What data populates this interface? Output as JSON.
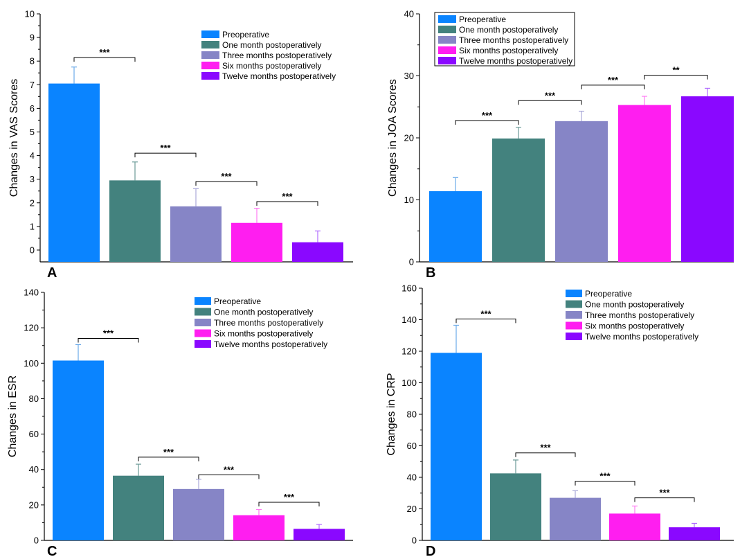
{
  "chart_data": [
    {
      "panel": "A",
      "type": "bar",
      "categories": [
        "Preoperative",
        "One month postoperatively",
        "Three months postoperatively",
        "Six months postoperatively",
        "Twelve months postoperatively"
      ],
      "values": [
        7.05,
        2.95,
        1.85,
        1.15,
        0.33
      ],
      "errors": [
        0.7,
        0.78,
        0.75,
        0.62,
        0.48
      ],
      "ylabel": "Changes in VAS Scores",
      "xlabel": "",
      "ylim": [
        -0.5,
        10
      ],
      "yticks": [
        0,
        1,
        2,
        3,
        4,
        5,
        6,
        7,
        8,
        9,
        10
      ],
      "legend_position": "top-right",
      "significance": [
        {
          "from": 0,
          "to": 1,
          "label": "***",
          "y": 8.15
        },
        {
          "from": 1,
          "to": 2,
          "label": "***",
          "y": 4.1
        },
        {
          "from": 2,
          "to": 3,
          "label": "***",
          "y": 2.9
        },
        {
          "from": 3,
          "to": 4,
          "label": "***",
          "y": 2.05
        }
      ]
    },
    {
      "panel": "B",
      "type": "bar",
      "categories": [
        "Preoperative",
        "One month postoperatively",
        "Three months postoperatively",
        "Six months postoperatively",
        "Twelve months postoperatively"
      ],
      "values": [
        11.4,
        19.9,
        22.7,
        25.3,
        26.7
      ],
      "errors": [
        2.2,
        1.8,
        1.6,
        1.4,
        1.3
      ],
      "ylabel": "Changes in JOA Scores",
      "xlabel": "",
      "ylim": [
        0,
        40
      ],
      "yticks": [
        0,
        10,
        20,
        30,
        40
      ],
      "legend_position": "top-left",
      "significance": [
        {
          "from": 0,
          "to": 1,
          "label": "***",
          "y": 22.8
        },
        {
          "from": 1,
          "to": 2,
          "label": "***",
          "y": 26.0
        },
        {
          "from": 2,
          "to": 3,
          "label": "***",
          "y": 28.5
        },
        {
          "from": 3,
          "to": 4,
          "label": "**",
          "y": 30.1
        }
      ]
    },
    {
      "panel": "C",
      "type": "bar",
      "categories": [
        "Preoperative",
        "One month postoperatively",
        "Three months postoperatively",
        "Six months postoperatively",
        "Twelve months postoperatively"
      ],
      "values": [
        101.5,
        36.5,
        29.0,
        14.2,
        6.5
      ],
      "errors": [
        9.0,
        6.5,
        5.5,
        3.2,
        2.5
      ],
      "ylabel": "Changes in ESR",
      "xlabel": "",
      "ylim": [
        0,
        140
      ],
      "yticks": [
        0,
        20,
        40,
        60,
        80,
        100,
        120,
        140
      ],
      "legend_position": "top-right",
      "significance": [
        {
          "from": 0,
          "to": 1,
          "label": "***",
          "y": 114.0
        },
        {
          "from": 1,
          "to": 2,
          "label": "***",
          "y": 47.0
        },
        {
          "from": 2,
          "to": 3,
          "label": "***",
          "y": 37.0
        },
        {
          "from": 3,
          "to": 4,
          "label": "***",
          "y": 21.5
        }
      ]
    },
    {
      "panel": "D",
      "type": "bar",
      "categories": [
        "Preoperative",
        "One month postoperatively",
        "Three months postoperatively",
        "Six months postoperatively",
        "Twelve months postoperatively"
      ],
      "values": [
        119.0,
        42.5,
        27.0,
        17.0,
        8.3
      ],
      "errors": [
        17.5,
        8.5,
        4.5,
        4.8,
        2.5
      ],
      "ylabel": "Changes in CRP",
      "xlabel": "",
      "ylim": [
        0,
        160
      ],
      "yticks": [
        0,
        20,
        40,
        60,
        80,
        100,
        120,
        140,
        160
      ],
      "legend_position": "top-right",
      "significance": [
        {
          "from": 0,
          "to": 1,
          "label": "***",
          "y": 140.5
        },
        {
          "from": 1,
          "to": 2,
          "label": "***",
          "y": 55.5
        },
        {
          "from": 2,
          "to": 3,
          "label": "***",
          "y": 37.5
        },
        {
          "from": 3,
          "to": 4,
          "label": "***",
          "y": 27.0
        }
      ]
    }
  ],
  "colors": [
    "#0a84ff",
    "#43827e",
    "#8685c6",
    "#ff1ef0",
    "#8a08ff"
  ],
  "error_colors": [
    "#6aa9e8",
    "#6a9a97",
    "#a9a8d8",
    "#ff7af2",
    "#b06aff"
  ]
}
